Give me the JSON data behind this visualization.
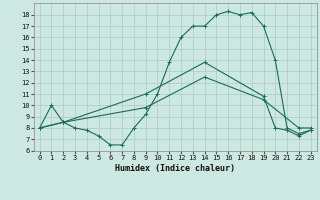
{
  "xlabel": "Humidex (Indice chaleur)",
  "bg_color": "#cce8e0",
  "grid_color": "#a8ccc4",
  "line_color": "#1a6b5a",
  "xlim": [
    -0.5,
    23.5
  ],
  "ylim": [
    6.0,
    19.0
  ],
  "xticks": [
    0,
    1,
    2,
    3,
    4,
    5,
    6,
    7,
    8,
    9,
    10,
    11,
    12,
    13,
    14,
    15,
    16,
    17,
    18,
    19,
    20,
    21,
    22,
    23
  ],
  "yticks": [
    6,
    7,
    8,
    9,
    10,
    11,
    12,
    13,
    14,
    15,
    16,
    17,
    18
  ],
  "line1_x": [
    0,
    1,
    2,
    3,
    4,
    5,
    6,
    7,
    8,
    9,
    10,
    11,
    12,
    13,
    14,
    15,
    16,
    17,
    18,
    19,
    20,
    21,
    22,
    23
  ],
  "line1_y": [
    8,
    10,
    8.5,
    8.0,
    7.8,
    7.3,
    6.5,
    6.5,
    8.0,
    9.2,
    11.0,
    13.8,
    16.0,
    17.0,
    17.0,
    18.0,
    18.3,
    18.0,
    18.2,
    17.0,
    14.0,
    8.0,
    7.5,
    7.8
  ],
  "line2_x": [
    0,
    2,
    9,
    14,
    19,
    20,
    21,
    22,
    23
  ],
  "line2_y": [
    8,
    8.5,
    11.0,
    13.8,
    10.8,
    8.0,
    7.8,
    7.3,
    7.8
  ],
  "line3_x": [
    0,
    2,
    9,
    14,
    19,
    22,
    23
  ],
  "line3_y": [
    8,
    8.5,
    9.8,
    12.5,
    10.5,
    8.0,
    8.0
  ]
}
